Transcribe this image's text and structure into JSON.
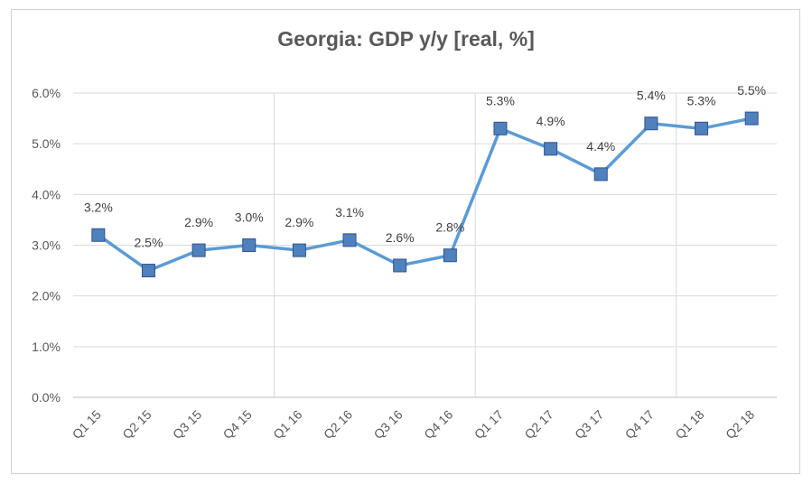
{
  "chart_data": {
    "type": "line",
    "title": "Georgia: GDP y/y [real, %]",
    "categories": [
      "Q1 15",
      "Q2 15",
      "Q3 15",
      "Q4 15",
      "Q1 16",
      "Q2 16",
      "Q3 16",
      "Q4 16",
      "Q1 17",
      "Q2 17",
      "Q3 17",
      "Q4 17",
      "Q1 18",
      "Q2 18"
    ],
    "values": [
      3.2,
      2.5,
      2.9,
      3.0,
      2.9,
      3.1,
      2.6,
      2.8,
      5.3,
      4.9,
      4.4,
      5.4,
      5.3,
      5.5
    ],
    "data_labels": [
      "3.2%",
      "2.5%",
      "2.9%",
      "3.0%",
      "2.9%",
      "3.1%",
      "2.6%",
      "2.8%",
      "5.3%",
      "4.9%",
      "4.4%",
      "5.4%",
      "5.3%",
      "5.5%"
    ],
    "ylim": [
      0,
      6
    ],
    "yticks": [
      "0.0%",
      "1.0%",
      "2.0%",
      "3.0%",
      "4.0%",
      "5.0%",
      "6.0%"
    ],
    "xlabel": "",
    "ylabel": "",
    "grid": true,
    "legend": "none",
    "colors": {
      "line": "#5b9bd5",
      "marker_fill": "#4f81bd",
      "marker_edge": "#2f528f",
      "grid": "#d9d9d9"
    }
  }
}
